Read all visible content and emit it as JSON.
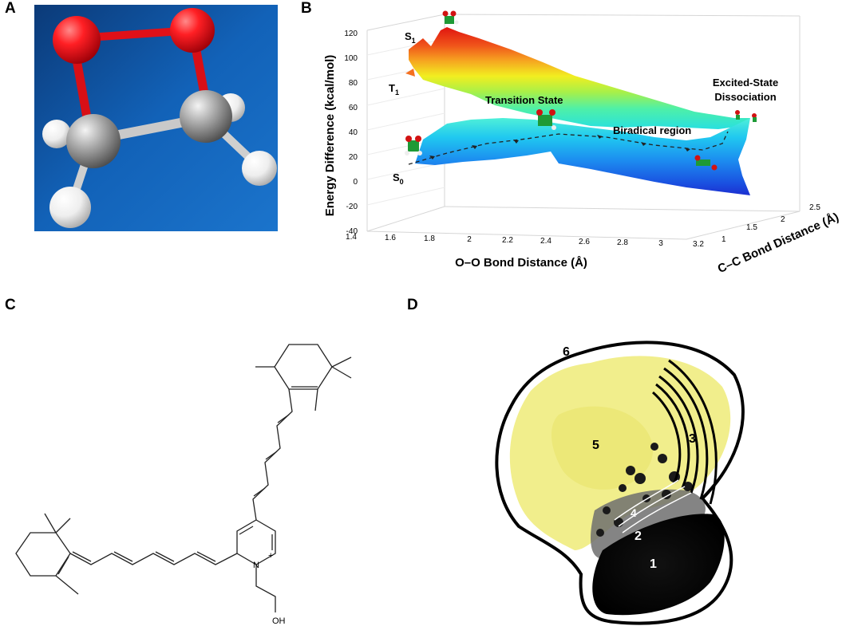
{
  "panels": {
    "a": {
      "letter": "A"
    },
    "b": {
      "letter": "B",
      "x_axis_label": "O–O Bond Distance (Å)",
      "y_axis_label": "Energy Difference (kcal/mol)",
      "z_axis_label": "C–C Bond Distance (Å)",
      "x_ticks": [
        "1.4",
        "1.6",
        "1.8",
        "2",
        "2.2",
        "2.4",
        "2.6",
        "2.8",
        "3",
        "3.2"
      ],
      "y_ticks": [
        "120",
        "100",
        "80",
        "60",
        "40",
        "20",
        "0",
        "-20",
        "-40"
      ],
      "z_ticks": [
        "1",
        "1.5",
        "2",
        "2.5"
      ],
      "state_s1": {
        "base": "S",
        "sub": "1"
      },
      "state_t1": {
        "base": "T",
        "sub": "1"
      },
      "state_s0": {
        "base": "S",
        "sub": "0"
      },
      "annotation_ts": "Transition State",
      "annotation_biradical": "Biradical region",
      "annotation_dissociation_line1": "Excited-State",
      "annotation_dissociation_line2": "Dissociation"
    },
    "c": {
      "letter": "C",
      "hydroxyl_label": "OH",
      "charge_label": "+",
      "nitrogen_label": "N"
    },
    "d": {
      "letter": "D",
      "region_labels": [
        "1",
        "2",
        "3",
        "4",
        "5",
        "6"
      ]
    }
  },
  "colors": {
    "oxygen": "#e8131b",
    "carbon": "#9a9a9a",
    "hydrogen": "#f2f2f2",
    "molecule_bg": "#0f4f9a",
    "surface_high": "#e81b0e",
    "surface_low": "#1a3fd6",
    "yellow_region": "#f1ee8c",
    "black_region": "#111111"
  }
}
